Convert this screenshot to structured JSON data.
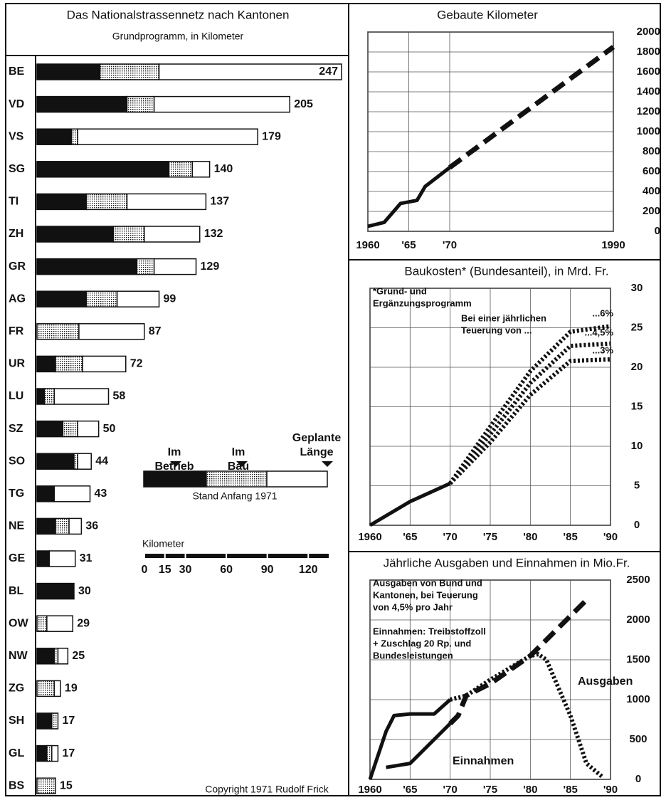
{
  "chart_data": [
    {
      "type": "stacked-bar",
      "title": "Das Nationalstrassennetz nach Kantonen",
      "subtitle": "Grundprogramm, in Kilometer",
      "categories": [
        "BE",
        "VD",
        "VS",
        "SG",
        "TI",
        "ZH",
        "GR",
        "AG",
        "FR",
        "UR",
        "LU",
        "SZ",
        "SO",
        "TG",
        "NE",
        "GE",
        "BL",
        "OW",
        "NW",
        "ZG",
        "SH",
        "GL",
        "BS"
      ],
      "series": [
        {
          "name": "Im Betrieb",
          "color": "#111111",
          "values": [
            51,
            73,
            28,
            107,
            40,
            62,
            81,
            40,
            0,
            15,
            6,
            21,
            30,
            14,
            15,
            10,
            30,
            0,
            14,
            0,
            12,
            8,
            0
          ]
        },
        {
          "name": "Im Bau",
          "color": "#111111",
          "pattern": "dotted",
          "values": [
            48,
            22,
            5,
            19,
            33,
            25,
            14,
            25,
            34,
            22,
            8,
            12,
            3,
            0,
            11,
            0,
            0,
            8,
            3,
            14,
            5,
            4,
            15
          ]
        },
        {
          "name": "Geplante Länge",
          "color": "#ffffff",
          "values": [
            148,
            110,
            146,
            14,
            64,
            45,
            34,
            34,
            53,
            35,
            44,
            17,
            11,
            29,
            10,
            21,
            0,
            21,
            8,
            5,
            0,
            5,
            0
          ]
        }
      ],
      "totals": [
        247,
        205,
        179,
        140,
        137,
        132,
        129,
        99,
        87,
        72,
        58,
        50,
        44,
        43,
        36,
        31,
        30,
        29,
        25,
        19,
        17,
        17,
        15
      ],
      "xlim": [
        0,
        247
      ],
      "note": "Stand Anfang 1971",
      "scale": {
        "label": "Kilometer",
        "ticks": [
          0,
          15,
          30,
          60,
          90,
          120
        ],
        "lim": [
          0,
          135
        ]
      },
      "copyright": "Copyright 1971 Rudolf Frick"
    },
    {
      "type": "line",
      "title": "Gebaute Kilometer",
      "series": [
        {
          "color": "#111111",
          "dash": "solid",
          "x": [
            1960,
            1962,
            1964,
            1966,
            1967,
            1970
          ],
          "values": [
            50,
            90,
            280,
            310,
            450,
            640
          ]
        },
        {
          "color": "#111111",
          "dash": "dashed",
          "x": [
            1970,
            1990
          ],
          "values": [
            640,
            1850
          ]
        }
      ],
      "xlim": [
        1960,
        1990
      ],
      "xticks": [
        1960,
        {
          "value": 1965,
          "label": "'65"
        },
        {
          "value": 1970,
          "label": "'70"
        },
        1990
      ],
      "ylim": [
        0,
        2000
      ],
      "yticks": [
        0,
        200,
        400,
        600,
        800,
        1000,
        1200,
        1400,
        1600,
        1800,
        2000
      ],
      "grid": true
    },
    {
      "type": "line",
      "title": "Baukosten* (Bundesanteil), in Mrd. Fr.",
      "annotations": [
        [
          "*Grund- und",
          "Ergänzungsprogramm"
        ],
        [
          "Bei einer jährlichen",
          "Teuerung von ..."
        ]
      ],
      "series": [
        {
          "color": "#111111",
          "dash": "solid",
          "x": [
            1960,
            1965,
            1970
          ],
          "values": [
            0,
            3,
            5.3
          ]
        },
        {
          "name": "...6%",
          "color": "#111111",
          "dash": "dotted",
          "x": [
            1970,
            1975,
            1980,
            1985,
            1990
          ],
          "values": [
            5.3,
            12.5,
            19.5,
            24.5,
            25.2
          ]
        },
        {
          "name": "...4,5%",
          "color": "#111111",
          "dash": "dotted",
          "x": [
            1970,
            1975,
            1980,
            1985,
            1990
          ],
          "values": [
            5.3,
            11.5,
            18,
            22.7,
            23
          ]
        },
        {
          "name": "...3%",
          "color": "#111111",
          "dash": "dotted",
          "x": [
            1970,
            1975,
            1980,
            1985,
            1990
          ],
          "values": [
            5.3,
            10.5,
            16.5,
            20.8,
            21
          ]
        }
      ],
      "xlim": [
        1960,
        1990
      ],
      "xticks": [
        1960,
        {
          "value": 1965,
          "label": "'65"
        },
        {
          "value": 1970,
          "label": "'70"
        },
        {
          "value": 1975,
          "label": "'75"
        },
        {
          "value": 1980,
          "label": "'80"
        },
        {
          "value": 1985,
          "label": "'85"
        },
        {
          "value": 1990,
          "label": "'90"
        }
      ],
      "ylim": [
        0,
        30
      ],
      "yticks": [
        0,
        5,
        10,
        15,
        20,
        25,
        30
      ],
      "grid": true
    },
    {
      "type": "line",
      "title": "Jährliche Ausgaben und Einnahmen in Mio.Fr.",
      "annotations": [
        [
          "Ausgaben von Bund und",
          "Kantonen, bei Teuerung",
          "von 4,5% pro Jahr"
        ],
        [
          "Einnahmen: Treibstoffzoll",
          "+ Zuschlag 20 Rp. und",
          "Bundesleistungen"
        ]
      ],
      "series": [
        {
          "name": "Ausgaben",
          "color": "#111111",
          "dash": "solid",
          "x": [
            1960,
            1962,
            1963,
            1965,
            1968,
            1970
          ],
          "values": [
            0,
            600,
            800,
            820,
            820,
            1000
          ]
        },
        {
          "color": "#111111",
          "dash": "dotted",
          "x": [
            1970,
            1972,
            1975,
            1980,
            1981,
            1982,
            1985,
            1987,
            1989
          ],
          "values": [
            1000,
            1050,
            1250,
            1550,
            1570,
            1500,
            800,
            200,
            30
          ]
        },
        {
          "name": "Einnahmen",
          "color": "#111111",
          "dash": "solid",
          "x": [
            1962,
            1965,
            1970
          ],
          "values": [
            150,
            200,
            700
          ]
        },
        {
          "color": "#111111",
          "dash": "dashed",
          "x": [
            1970,
            1971,
            1972,
            1975,
            1980,
            1987
          ],
          "values": [
            700,
            800,
            1050,
            1200,
            1550,
            2250
          ]
        }
      ],
      "xlim": [
        1960,
        1990
      ],
      "xticks": [
        1960,
        {
          "value": 1965,
          "label": "'65"
        },
        {
          "value": 1970,
          "label": "'70"
        },
        {
          "value": 1975,
          "label": "'75"
        },
        {
          "value": 1980,
          "label": "'80"
        },
        {
          "value": 1985,
          "label": "'85"
        },
        {
          "value": 1990,
          "label": "'90"
        }
      ],
      "ylim": [
        0,
        2500
      ],
      "yticks": [
        0,
        500,
        1000,
        1500,
        2000,
        2500
      ],
      "grid": true
    }
  ]
}
